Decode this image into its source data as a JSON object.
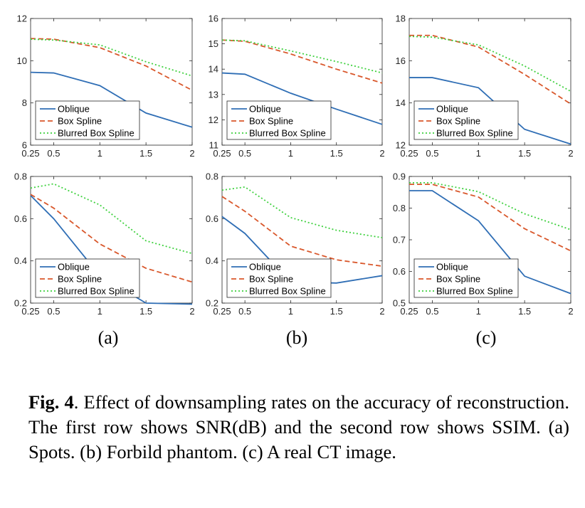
{
  "chart_data": [
    {
      "type": "line",
      "panel": "a",
      "metric": "SNR(dB)",
      "x": [
        0.25,
        0.5,
        1,
        1.5,
        2
      ],
      "xticks": [
        "0.25",
        "0.5",
        "1",
        "1.5",
        "2"
      ],
      "ylim": [
        6,
        12
      ],
      "yticks": [
        "6",
        "8",
        "10",
        "12"
      ],
      "ytick_values": [
        6,
        8,
        10,
        12
      ],
      "legend_placement": "bottom-left",
      "series": [
        {
          "name": "Oblique",
          "values": [
            9.45,
            9.42,
            8.82,
            7.52,
            6.85
          ]
        },
        {
          "name": "Box Spline",
          "values": [
            11.05,
            11.02,
            10.62,
            9.75,
            8.6
          ]
        },
        {
          "name": "Blurred Box Spline",
          "values": [
            11.02,
            10.98,
            10.75,
            9.95,
            9.28
          ]
        }
      ]
    },
    {
      "type": "line",
      "panel": "b",
      "metric": "SNR(dB)",
      "x": [
        0.25,
        0.5,
        1,
        1.5,
        2
      ],
      "xticks": [
        "0.25",
        "0.5",
        "1",
        "1.5",
        "2"
      ],
      "ylim": [
        11,
        16
      ],
      "yticks": [
        "11",
        "12",
        "13",
        "14",
        "15",
        "16"
      ],
      "ytick_values": [
        11,
        12,
        13,
        14,
        15,
        16
      ],
      "legend_placement": "bottom-left",
      "series": [
        {
          "name": "Oblique",
          "values": [
            13.85,
            13.8,
            13.05,
            12.42,
            11.82
          ]
        },
        {
          "name": "Box Spline",
          "values": [
            15.15,
            15.1,
            14.6,
            14.0,
            13.45
          ]
        },
        {
          "name": "Blurred Box Spline",
          "values": [
            15.15,
            15.12,
            14.72,
            14.3,
            13.85
          ]
        }
      ]
    },
    {
      "type": "line",
      "panel": "c",
      "metric": "SNR(dB)",
      "x": [
        0.25,
        0.5,
        1,
        1.5,
        2
      ],
      "xticks": [
        "0.25",
        "0.5",
        "1",
        "1.5",
        "2"
      ],
      "ylim": [
        12,
        18
      ],
      "yticks": [
        "12",
        "14",
        "16",
        "18"
      ],
      "ytick_values": [
        12,
        14,
        16,
        18
      ],
      "legend_placement": "bottom-left",
      "series": [
        {
          "name": "Oblique",
          "values": [
            15.2,
            15.2,
            14.72,
            12.75,
            12.05
          ]
        },
        {
          "name": "Box Spline",
          "values": [
            17.2,
            17.2,
            16.65,
            15.35,
            13.95
          ]
        },
        {
          "name": "Blurred Box Spline",
          "values": [
            17.15,
            17.12,
            16.75,
            15.75,
            14.55
          ]
        }
      ]
    },
    {
      "type": "line",
      "panel": "a",
      "metric": "SSIM",
      "x": [
        0.25,
        0.5,
        1,
        1.5,
        2
      ],
      "xticks": [
        "0.25",
        "0.5",
        "1",
        "1.5",
        "2"
      ],
      "ylim": [
        0.2,
        0.8
      ],
      "yticks": [
        "0.2",
        "0.4",
        "0.6",
        "0.8"
      ],
      "ytick_values": [
        0.2,
        0.4,
        0.6,
        0.8
      ],
      "legend_placement": "bottom-left",
      "series": [
        {
          "name": "Oblique",
          "values": [
            0.71,
            0.6,
            0.33,
            0.2,
            0.195
          ]
        },
        {
          "name": "Box Spline",
          "values": [
            0.715,
            0.65,
            0.48,
            0.365,
            0.3
          ]
        },
        {
          "name": "Blurred Box Spline",
          "values": [
            0.745,
            0.765,
            0.665,
            0.495,
            0.435
          ]
        }
      ]
    },
    {
      "type": "line",
      "panel": "b",
      "metric": "SSIM",
      "x": [
        0.25,
        0.5,
        1,
        1.5,
        2
      ],
      "xticks": [
        "0.25",
        "0.5",
        "1",
        "1.5",
        "2"
      ],
      "ylim": [
        0.2,
        0.8
      ],
      "yticks": [
        "0.2",
        "0.4",
        "0.6",
        "0.8"
      ],
      "ytick_values": [
        0.2,
        0.4,
        0.6,
        0.8
      ],
      "legend_placement": "bottom-left",
      "series": [
        {
          "name": "Oblique",
          "values": [
            0.61,
            0.53,
            0.3,
            0.295,
            0.33
          ]
        },
        {
          "name": "Box Spline",
          "values": [
            0.705,
            0.635,
            0.47,
            0.405,
            0.375
          ]
        },
        {
          "name": "Blurred Box Spline",
          "values": [
            0.735,
            0.75,
            0.605,
            0.545,
            0.51
          ]
        }
      ]
    },
    {
      "type": "line",
      "panel": "c",
      "metric": "SSIM",
      "x": [
        0.25,
        0.5,
        1,
        1.5,
        2
      ],
      "xticks": [
        "0.25",
        "0.5",
        "1",
        "1.5",
        "2"
      ],
      "ylim": [
        0.5,
        0.9
      ],
      "yticks": [
        "0.5",
        "0.6",
        "0.7",
        "0.8",
        "0.9"
      ],
      "ytick_values": [
        0.5,
        0.6,
        0.7,
        0.8,
        0.9
      ],
      "legend_placement": "bottom-left",
      "series": [
        {
          "name": "Oblique",
          "values": [
            0.855,
            0.855,
            0.76,
            0.585,
            0.53
          ]
        },
        {
          "name": "Box Spline",
          "values": [
            0.875,
            0.875,
            0.835,
            0.735,
            0.665
          ]
        },
        {
          "name": "Blurred Box Spline",
          "values": [
            0.88,
            0.88,
            0.852,
            0.782,
            0.732
          ]
        }
      ]
    }
  ],
  "series_colors": {
    "Oblique": "#2f6eb5",
    "Box Spline": "#d9572b",
    "Blurred Box Spline": "#3fd13f"
  },
  "series_styles": {
    "Oblique": "solid",
    "Box Spline": "dashed",
    "Blurred Box Spline": "dotted"
  },
  "panel_labels": [
    "(a)",
    "(b)",
    "(c)"
  ],
  "caption": {
    "label": "Fig. 4",
    "text": ". Effect of downsampling rates on the accuracy of reconstruction. The first row shows SNR(dB) and the second row shows SSIM. (a) Spots. (b) Forbild phantom. (c) A real CT image."
  }
}
